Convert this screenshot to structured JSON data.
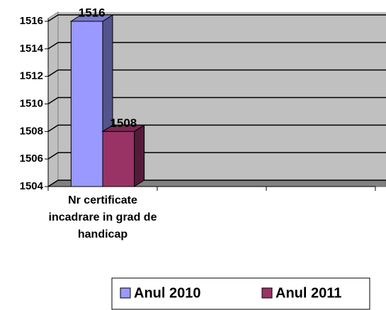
{
  "chart_data": {
    "type": "bar3d",
    "categories": [
      "Nr certificate incadrare in grad de handicap",
      null,
      null
    ],
    "series": [
      {
        "name": "Anul 2010",
        "color": "#9999ff",
        "values": [
          1516,
          null,
          null
        ]
      },
      {
        "name": "Anul 2011",
        "color": "#993366",
        "values": [
          1508,
          null,
          null
        ]
      }
    ],
    "ylim": [
      1504,
      1516
    ],
    "yticks": [
      1504,
      1506,
      1508,
      1510,
      1512,
      1514,
      1516
    ],
    "grid": true,
    "legend": "bottom"
  }
}
